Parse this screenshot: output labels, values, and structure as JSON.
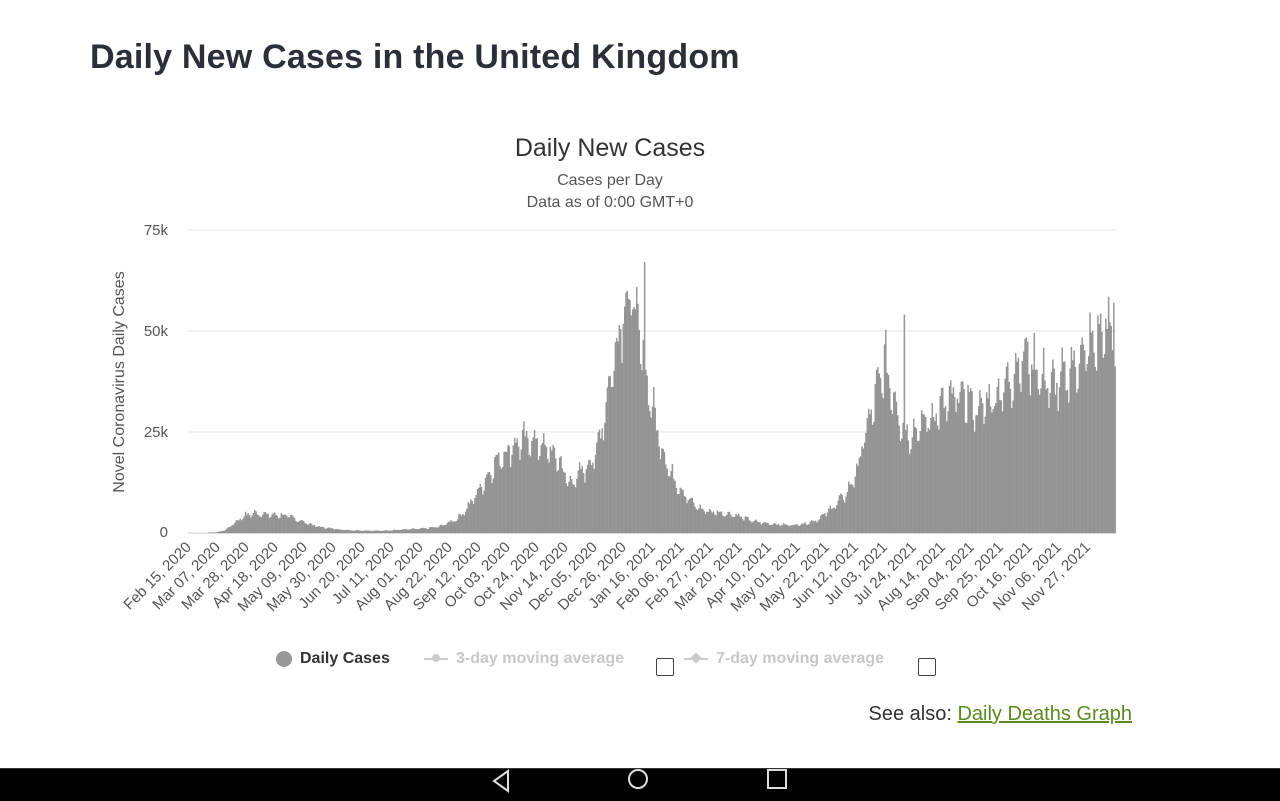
{
  "page": {
    "title": "Daily New Cases in the United Kingdom"
  },
  "chart_data": {
    "type": "bar",
    "title": "Daily New Cases",
    "subtitle_lines": [
      "Cases per Day",
      "Data as of 0:00 GMT+0"
    ],
    "ylabel": "Novel Coronavirus Daily Cases",
    "xlabel": "",
    "ylim": [
      0,
      75000
    ],
    "yticks": [
      "0",
      "25k",
      "50k",
      "75k"
    ],
    "ytick_values": [
      0,
      25000,
      50000,
      75000
    ],
    "grid": true,
    "bar_color": "#999999",
    "x_range": [
      "Feb 15, 2020",
      "Dec 07, 2021"
    ],
    "x_tick_labels": [
      "Feb 15, 2020",
      "Mar 07, 2020",
      "Mar 28, 2020",
      "Apr 18, 2020",
      "May 09, 2020",
      "May 30, 2020",
      "Jun 20, 2020",
      "Jul 11, 2020",
      "Aug 01, 2020",
      "Aug 22, 2020",
      "Sep 12, 2020",
      "Oct 03, 2020",
      "Oct 24, 2020",
      "Nov 14, 2020",
      "Dec 05, 2020",
      "Dec 26, 2020",
      "Jan 16, 2021",
      "Feb 06, 2021",
      "Feb 27, 2021",
      "Mar 20, 2021",
      "Apr 10, 2021",
      "May 01, 2021",
      "May 22, 2021",
      "Jun 12, 2021",
      "Jul 03, 2021",
      "Jul 24, 2021",
      "Aug 14, 2021",
      "Sep 04, 2021",
      "Sep 25, 2021",
      "Oct 16, 2021",
      "Nov 06, 2021",
      "Nov 27, 2021"
    ],
    "series": [
      {
        "name": "Daily Cases",
        "weekly_avg_values": [
          0,
          0,
          0,
          100,
          700,
          2500,
          4200,
          4800,
          4700,
          4300,
          4400,
          3900,
          3000,
          2200,
          1500,
          1200,
          900,
          700,
          600,
          550,
          500,
          550,
          650,
          800,
          900,
          1000,
          1200,
          1500,
          2500,
          3500,
          6000,
          9500,
          13000,
          17000,
          19500,
          21500,
          22500,
          23000,
          21500,
          20000,
          17500,
          12000,
          14000,
          16500,
          20000,
          32000,
          45000,
          58000,
          57000,
          42000,
          31000,
          21000,
          14500,
          11000,
          8000,
          6000,
          5300,
          5000,
          4700,
          4400,
          3500,
          2800,
          2400,
          2200,
          2000,
          1900,
          2100,
          2600,
          3500,
          5500,
          7500,
          10000,
          15000,
          25000,
          33000,
          42000,
          34000,
          26000,
          24500,
          26500,
          28500,
          30500,
          32000,
          34000,
          33000,
          30000,
          32000,
          34000,
          36000,
          40000,
          44000,
          42000,
          38000,
          36000,
          37000,
          40000,
          43000,
          45000,
          48000,
          49000
        ],
        "peaks": {
          "Jan 2021": 67000,
          "Jul 2021": 54000,
          "Dec 2021": 57000
        }
      }
    ],
    "legend": [
      {
        "label": "Daily Cases",
        "active": true,
        "color": "#999999"
      },
      {
        "label": "3-day moving average",
        "active": false,
        "color": "#cccccc"
      },
      {
        "label": "7-day moving average",
        "active": false,
        "color": "#cccccc"
      }
    ]
  },
  "see_also": {
    "prefix": "See also:",
    "link_label": "Daily Deaths Graph"
  },
  "navbar": {
    "icons": [
      "back-icon",
      "home-icon",
      "recents-icon"
    ]
  }
}
